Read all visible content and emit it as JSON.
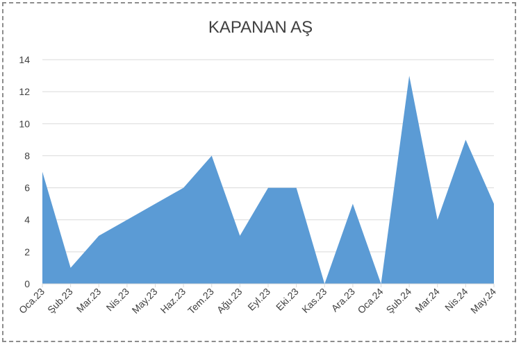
{
  "chart_data": {
    "type": "area",
    "title": "KAPANAN AŞ",
    "xlabel": "",
    "ylabel": "",
    "categories": [
      "Oca.23",
      "Şub.23",
      "Mar.23",
      "Nis.23",
      "May.23",
      "Haz.23",
      "Tem.23",
      "Ağu.23",
      "Eyl.23",
      "Eki.23",
      "Kas.23",
      "Ara.23",
      "Oca.24",
      "Şub.24",
      "Mar.24",
      "Nis.24",
      "May.24"
    ],
    "values": [
      7,
      1,
      3,
      4,
      5,
      6,
      8,
      3,
      6,
      6,
      0,
      5,
      0,
      13,
      4,
      9,
      5
    ],
    "ylim": [
      0,
      14
    ],
    "yticks": [
      0,
      2,
      4,
      6,
      8,
      10,
      12,
      14
    ],
    "grid": true,
    "legend": "none",
    "fill_color": "#5b9bd5"
  }
}
